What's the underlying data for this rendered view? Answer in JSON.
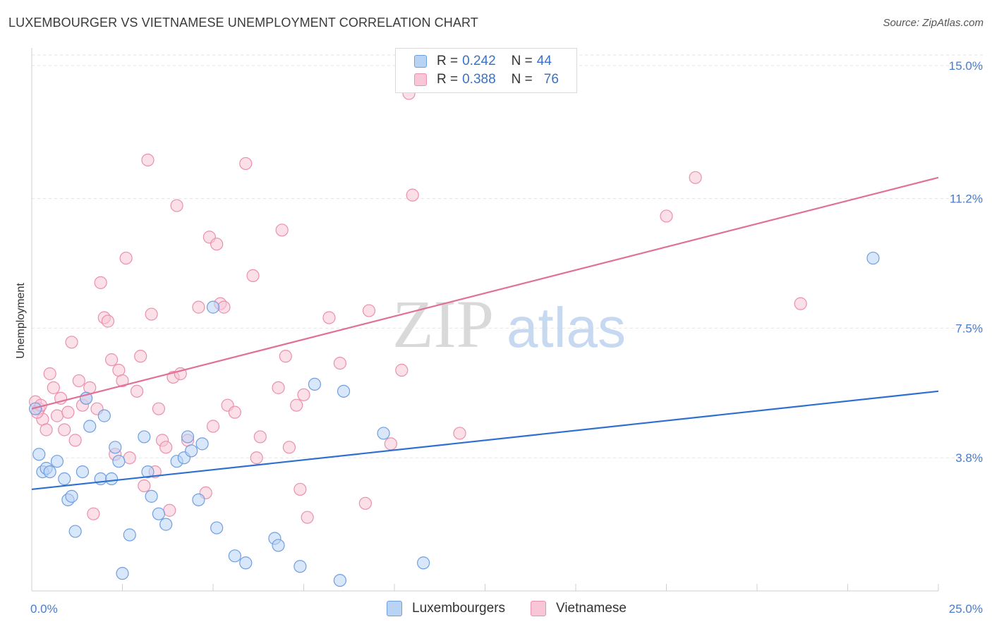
{
  "title": "LUXEMBOURGER VS VIETNAMESE UNEMPLOYMENT CORRELATION CHART",
  "source": "Source: ZipAtlas.com",
  "watermark": {
    "zip": "ZIP",
    "atlas": "atlas"
  },
  "colors": {
    "blue_fill": "#b9d3f5",
    "blue_stroke": "#6f9fe0",
    "blue_line": "#2e6fd1",
    "pink_fill": "#f8c6d6",
    "pink_stroke": "#ea90ae",
    "pink_line": "#e0709a",
    "tick_text": "#4a7cc9",
    "grid": "#e3e3e3"
  },
  "legend": {
    "rows": [
      {
        "r_label": "R =",
        "r_value": "0.242",
        "n_label": "N =",
        "n_value": "44"
      },
      {
        "r_label": "R =",
        "r_value": "0.388",
        "n_label": "N =",
        "n_value": "76"
      }
    ]
  },
  "bottom_legend": {
    "luxembourgers": "Luxembourgers",
    "vietnamese": "Vietnamese"
  },
  "chart_data": {
    "type": "scatter",
    "title": "LUXEMBOURGER VS VIETNAMESE UNEMPLOYMENT CORRELATION CHART",
    "xlabel": "",
    "ylabel": "Unemployment",
    "xlim": [
      0,
      25
    ],
    "ylim": [
      0,
      15.5
    ],
    "x_tick_labels": [
      "0.0%",
      "25.0%"
    ],
    "y_ticks": [
      3.8,
      7.5,
      11.2,
      15.0
    ],
    "y_tick_labels": [
      "3.8%",
      "7.5%",
      "11.2%",
      "15.0%"
    ],
    "grid": true,
    "series": [
      {
        "name": "Luxembourgers",
        "color": "blue",
        "trend": {
          "x0": 0,
          "y0": 2.9,
          "x1": 25,
          "y1": 5.7
        },
        "points": [
          [
            0.1,
            5.2
          ],
          [
            0.2,
            3.9
          ],
          [
            0.3,
            3.4
          ],
          [
            0.4,
            3.5
          ],
          [
            0.5,
            3.4
          ],
          [
            0.7,
            3.7
          ],
          [
            0.9,
            3.2
          ],
          [
            1.0,
            2.6
          ],
          [
            1.1,
            2.7
          ],
          [
            1.2,
            1.7
          ],
          [
            1.4,
            3.4
          ],
          [
            1.5,
            5.5
          ],
          [
            1.6,
            4.7
          ],
          [
            1.9,
            3.2
          ],
          [
            2.0,
            5.0
          ],
          [
            2.2,
            3.2
          ],
          [
            2.3,
            4.1
          ],
          [
            2.4,
            3.7
          ],
          [
            2.5,
            0.5
          ],
          [
            2.7,
            1.6
          ],
          [
            3.1,
            4.4
          ],
          [
            3.2,
            3.4
          ],
          [
            3.3,
            2.7
          ],
          [
            3.5,
            2.2
          ],
          [
            3.7,
            1.9
          ],
          [
            4.0,
            3.7
          ],
          [
            4.2,
            3.8
          ],
          [
            4.3,
            4.4
          ],
          [
            4.4,
            4.0
          ],
          [
            4.6,
            2.6
          ],
          [
            4.7,
            4.2
          ],
          [
            5.0,
            8.1
          ],
          [
            5.1,
            1.8
          ],
          [
            5.6,
            1.0
          ],
          [
            5.9,
            0.8
          ],
          [
            6.7,
            1.5
          ],
          [
            6.8,
            1.3
          ],
          [
            7.4,
            0.7
          ],
          [
            7.8,
            5.9
          ],
          [
            8.5,
            0.3
          ],
          [
            8.6,
            5.7
          ],
          [
            9.7,
            4.5
          ],
          [
            10.8,
            0.8
          ],
          [
            23.2,
            9.5
          ]
        ]
      },
      {
        "name": "Vietnamese",
        "color": "pink",
        "trend": {
          "x0": 0,
          "y0": 5.2,
          "x1": 25,
          "y1": 11.8
        },
        "points": [
          [
            0.1,
            5.4
          ],
          [
            0.2,
            5.2
          ],
          [
            0.3,
            4.9
          ],
          [
            0.4,
            4.6
          ],
          [
            0.5,
            6.2
          ],
          [
            0.6,
            5.8
          ],
          [
            0.7,
            5.0
          ],
          [
            0.8,
            5.5
          ],
          [
            0.9,
            4.6
          ],
          [
            1.0,
            5.1
          ],
          [
            1.1,
            7.1
          ],
          [
            1.2,
            4.3
          ],
          [
            1.3,
            6.0
          ],
          [
            1.4,
            5.3
          ],
          [
            1.5,
            5.5
          ],
          [
            1.6,
            5.8
          ],
          [
            1.7,
            2.2
          ],
          [
            1.8,
            5.2
          ],
          [
            1.9,
            8.8
          ],
          [
            2.0,
            7.8
          ],
          [
            2.1,
            7.7
          ],
          [
            2.2,
            6.6
          ],
          [
            2.3,
            3.9
          ],
          [
            2.4,
            6.3
          ],
          [
            2.5,
            6.0
          ],
          [
            2.6,
            9.5
          ],
          [
            2.7,
            3.8
          ],
          [
            2.9,
            5.7
          ],
          [
            3.0,
            6.7
          ],
          [
            3.1,
            3.0
          ],
          [
            3.2,
            12.3
          ],
          [
            3.3,
            7.9
          ],
          [
            3.4,
            3.4
          ],
          [
            3.5,
            5.2
          ],
          [
            3.6,
            4.3
          ],
          [
            3.7,
            4.1
          ],
          [
            3.8,
            2.3
          ],
          [
            3.9,
            6.1
          ],
          [
            4.0,
            11.0
          ],
          [
            4.1,
            6.2
          ],
          [
            4.3,
            4.3
          ],
          [
            4.6,
            8.1
          ],
          [
            4.8,
            2.8
          ],
          [
            4.9,
            10.1
          ],
          [
            5.0,
            4.7
          ],
          [
            5.1,
            9.9
          ],
          [
            5.2,
            8.2
          ],
          [
            5.3,
            8.1
          ],
          [
            5.4,
            5.3
          ],
          [
            5.6,
            5.1
          ],
          [
            5.9,
            12.2
          ],
          [
            6.1,
            9.0
          ],
          [
            6.2,
            3.8
          ],
          [
            6.3,
            4.4
          ],
          [
            6.8,
            5.8
          ],
          [
            6.9,
            10.3
          ],
          [
            7.0,
            6.7
          ],
          [
            7.1,
            4.1
          ],
          [
            7.3,
            5.3
          ],
          [
            7.4,
            2.9
          ],
          [
            7.5,
            5.6
          ],
          [
            7.6,
            2.1
          ],
          [
            8.2,
            7.8
          ],
          [
            8.5,
            6.5
          ],
          [
            9.2,
            2.5
          ],
          [
            9.3,
            8.0
          ],
          [
            9.9,
            4.2
          ],
          [
            10.2,
            6.3
          ],
          [
            10.4,
            14.2
          ],
          [
            10.5,
            11.3
          ],
          [
            11.8,
            4.5
          ],
          [
            17.5,
            10.7
          ],
          [
            18.3,
            11.8
          ],
          [
            21.2,
            8.2
          ],
          [
            0.15,
            5.1
          ],
          [
            0.25,
            5.3
          ]
        ]
      }
    ]
  }
}
